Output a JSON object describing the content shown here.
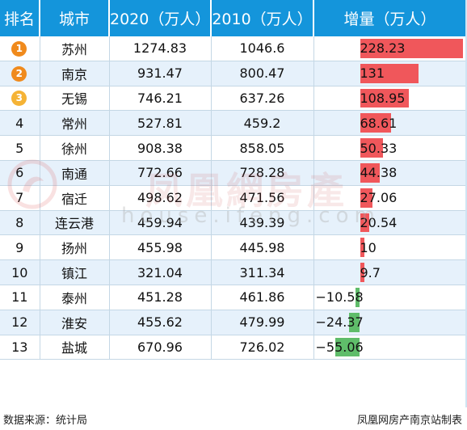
{
  "headers": {
    "rank": "排名",
    "city": "城市",
    "pop2020": "2020（万人）",
    "pop2010": "2010（万人）",
    "increase": "增量（万人）"
  },
  "rows": [
    {
      "rank": "1",
      "city": "苏州",
      "pop2020": "1274.83",
      "pop2010": "1046.6",
      "increase": "228.23",
      "value": 228.23,
      "medal_color": "#f08a1c"
    },
    {
      "rank": "2",
      "city": "南京",
      "pop2020": "931.47",
      "pop2010": "800.47",
      "increase": "131",
      "value": 131,
      "medal_color": "#f08a1c"
    },
    {
      "rank": "3",
      "city": "无锡",
      "pop2020": "746.21",
      "pop2010": "637.26",
      "increase": "108.95",
      "value": 108.95,
      "medal_color": "#f5b335"
    },
    {
      "rank": "4",
      "city": "常州",
      "pop2020": "527.81",
      "pop2010": "459.2",
      "increase": "68.61",
      "value": 68.61
    },
    {
      "rank": "5",
      "city": "徐州",
      "pop2020": "908.38",
      "pop2010": "858.05",
      "increase": "50.33",
      "value": 50.33
    },
    {
      "rank": "6",
      "city": "南通",
      "pop2020": "772.66",
      "pop2010": "728.28",
      "increase": "44.38",
      "value": 44.38
    },
    {
      "rank": "7",
      "city": "宿迁",
      "pop2020": "498.62",
      "pop2010": "471.56",
      "increase": "27.06",
      "value": 27.06
    },
    {
      "rank": "8",
      "city": "连云港",
      "pop2020": "459.94",
      "pop2010": "439.39",
      "increase": "20.54",
      "value": 20.54
    },
    {
      "rank": "9",
      "city": "扬州",
      "pop2020": "455.98",
      "pop2010": "445.98",
      "increase": "10",
      "value": 10
    },
    {
      "rank": "10",
      "city": "镇江",
      "pop2020": "321.04",
      "pop2010": "311.34",
      "increase": "9.7",
      "value": 9.7
    },
    {
      "rank": "11",
      "city": "泰州",
      "pop2020": "451.28",
      "pop2010": "461.86",
      "increase": "−10.58",
      "value": -10.58
    },
    {
      "rank": "12",
      "city": "淮安",
      "pop2020": "455.62",
      "pop2010": "479.99",
      "increase": "−24.37",
      "value": -24.37
    },
    {
      "rank": "13",
      "city": "盐城",
      "pop2020": "670.96",
      "pop2010": "726.02",
      "increase": "−55.06",
      "value": -55.06
    }
  ],
  "colors": {
    "header_bg": "#1495db",
    "row_alt_bg": "#e6f1fb",
    "bar_positive": "#f0575b",
    "bar_negative": "#5fbd6a"
  },
  "footer": {
    "source": "数据来源：统计局",
    "credit": "凤凰网房产南京站制表"
  },
  "watermark": {
    "text": "凤凰網房產",
    "sub": "house.ifeng.com"
  }
}
